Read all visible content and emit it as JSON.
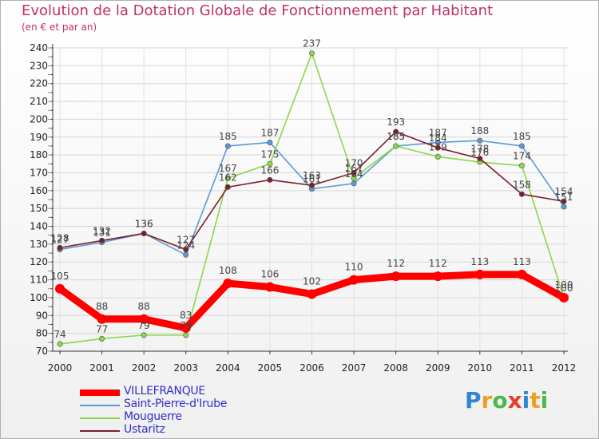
{
  "chart_data": {
    "type": "line",
    "title": "Evolution de la Dotation Globale de Fonctionnement par Habitant",
    "subtitle": "(en € et par an)",
    "xlabel": "",
    "ylabel": "",
    "ylim": [
      70,
      240
    ],
    "yticks": [
      "70",
      "80",
      "90",
      "100",
      "110",
      "120",
      "130",
      "140",
      "150",
      "160",
      "170",
      "180",
      "190",
      "200",
      "210",
      "220",
      "230",
      "240"
    ],
    "categories": [
      "2000",
      "2001",
      "2002",
      "2003",
      "2004",
      "2005",
      "2006",
      "2007",
      "2008",
      "2009",
      "2010",
      "2011",
      "2012"
    ],
    "grid": true,
    "legend_position": "bottom-left",
    "series": [
      {
        "name": "Saint-Pierre-d'Irube",
        "color": "#5a9ad5",
        "values": [
          127,
          131,
          136,
          124,
          185,
          187,
          161,
          164,
          185,
          187,
          188,
          185,
          151
        ]
      },
      {
        "name": "Mouguerre",
        "color": "#8ad84a",
        "values": [
          74,
          77,
          79,
          79,
          167,
          175,
          237,
          167,
          185,
          179,
          176,
          174,
          100
        ]
      },
      {
        "name": "Ustaritz",
        "color": "#7a1f2a",
        "values": [
          128,
          132,
          136,
          127,
          162,
          166,
          163,
          170,
          193,
          184,
          178,
          158,
          154
        ]
      },
      {
        "name": "VILLEFRANQUE",
        "color": "#ff0000",
        "values": [
          105,
          88,
          88,
          83,
          108,
          106,
          102,
          110,
          112,
          112,
          113,
          113,
          100
        ]
      }
    ]
  },
  "legend_items": [
    {
      "label": "VILLEFRANQUE",
      "color": "#ff0000",
      "thick": true
    },
    {
      "label": "Saint-Pierre-d'Irube",
      "color": "#5a9ad5",
      "thick": false
    },
    {
      "label": "Mouguerre",
      "color": "#8ad84a",
      "thick": false
    },
    {
      "label": "Ustaritz",
      "color": "#7a1f2a",
      "thick": false
    }
  ],
  "logo": {
    "letters": [
      "P",
      "r",
      "o",
      "x",
      "i",
      "t",
      "i"
    ],
    "colors": [
      "#2f86d6",
      "#f0a020",
      "#4cb84c",
      "#e04030",
      "#2f86d6",
      "#f0a020",
      "#4cb84c"
    ]
  }
}
